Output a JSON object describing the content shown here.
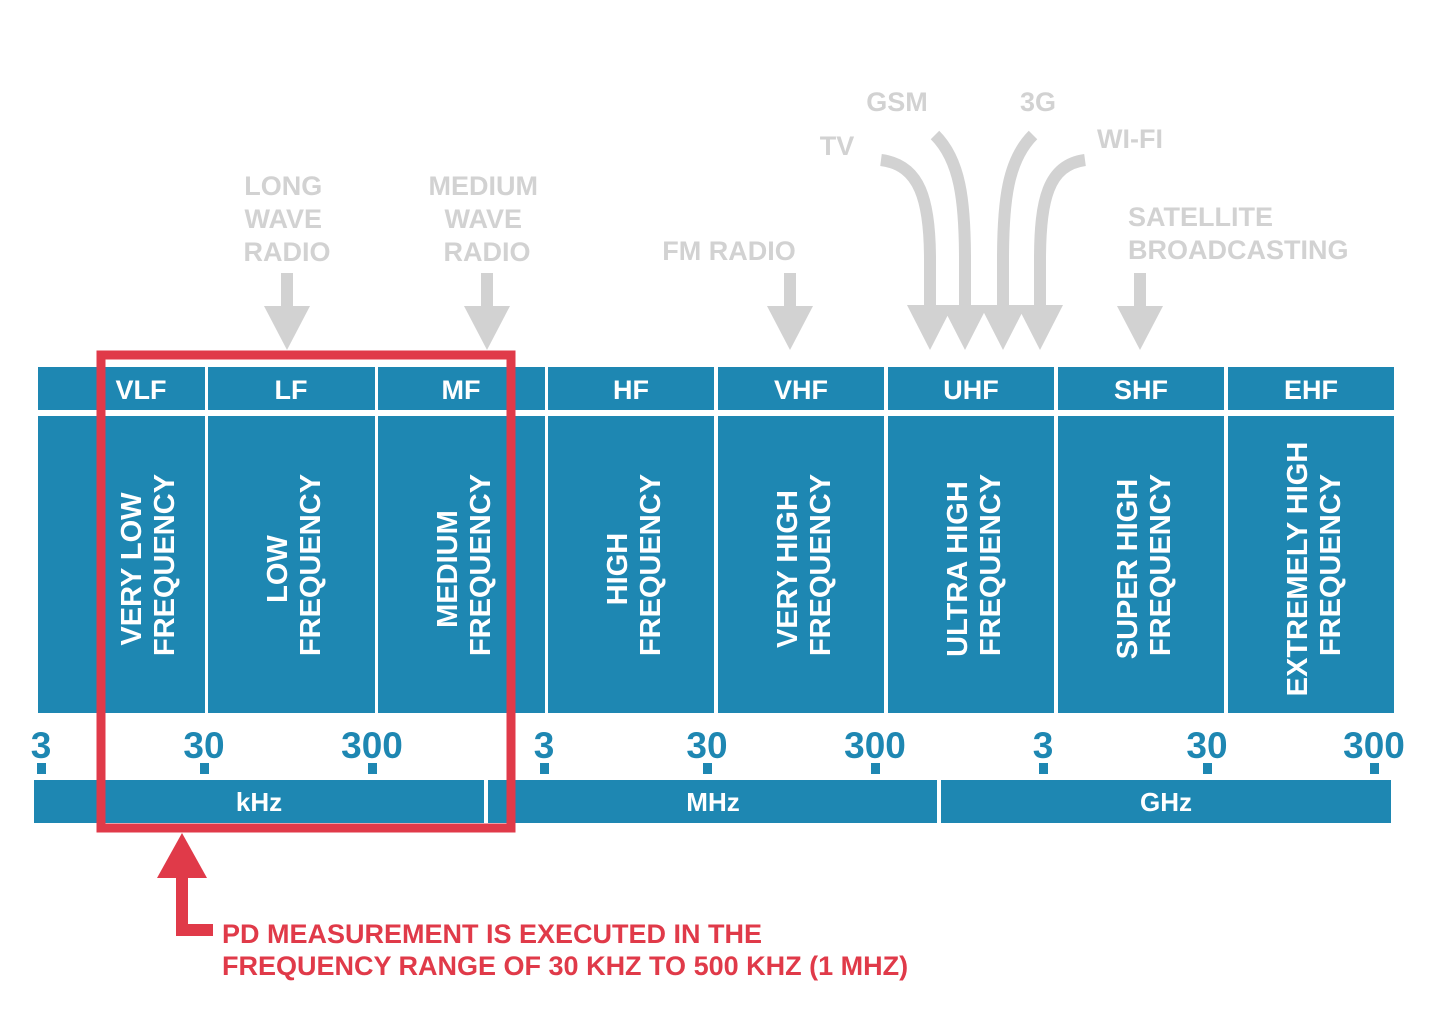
{
  "colors": {
    "band_blue": "#1e87b2",
    "application_gray": "#d2d2d2",
    "highlight_red": "#e03a49",
    "background": "#ffffff"
  },
  "applications": {
    "long_wave": [
      "LONG",
      "WAVE",
      "RADIO"
    ],
    "medium_wave": [
      "MEDIUM",
      "WAVE",
      "RADIO"
    ],
    "fm_radio": "FM RADIO",
    "tv": "TV",
    "gsm": "GSM",
    "g3": "3G",
    "wifi": "WI-FI",
    "satellite": [
      "SATELLITE",
      "BROADCASTING"
    ]
  },
  "bands": [
    {
      "abbr": "VLF",
      "name": [
        "VERY LOW",
        "FREQUENCY"
      ]
    },
    {
      "abbr": "LF",
      "name": [
        "LOW",
        "FREQUENCY"
      ]
    },
    {
      "abbr": "MF",
      "name": [
        "MEDIUM",
        "FREQUENCY"
      ]
    },
    {
      "abbr": "HF",
      "name": [
        "HIGH",
        "FREQUENCY"
      ]
    },
    {
      "abbr": "VHF",
      "name": [
        "VERY HIGH",
        "FREQUENCY"
      ]
    },
    {
      "abbr": "UHF",
      "name": [
        "ULTRA HIGH",
        "FREQUENCY"
      ]
    },
    {
      "abbr": "SHF",
      "name": [
        "SUPER HIGH",
        "FREQUENCY"
      ]
    },
    {
      "abbr": "EHF",
      "name": [
        "EXTREMELY HIGH",
        "FREQUENCY"
      ]
    }
  ],
  "ticks": [
    "3",
    "30",
    "300",
    "3",
    "30",
    "300",
    "3",
    "30",
    "300"
  ],
  "units": [
    "kHz",
    "MHz",
    "GHz"
  ],
  "note": {
    "line1": "PD MEASUREMENT IS EXECUTED IN THE",
    "line2": "FREQUENCY RANGE OF 30 KHZ TO 500 KHZ (1 MHZ)"
  }
}
